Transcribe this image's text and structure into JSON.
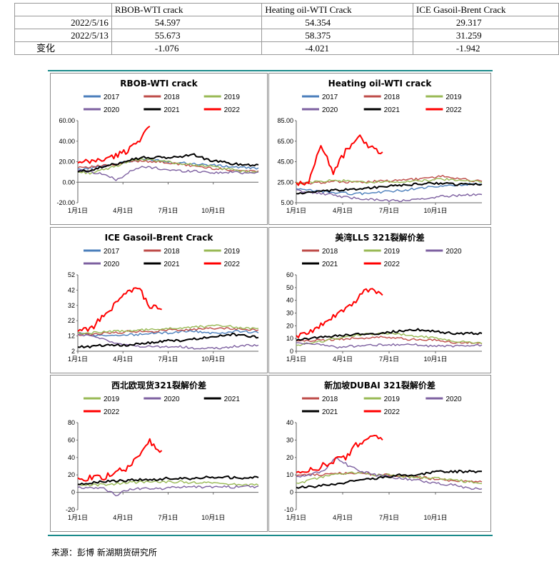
{
  "table": {
    "headers": [
      "",
      "RBOB-WTI crack",
      "Heating oil-WTI Crack",
      "ICE Gasoil-Brent Crack"
    ],
    "rows": [
      {
        "label": "2022/5/16",
        "v1": "54.597",
        "v2": "54.354",
        "v3": "29.317"
      },
      {
        "label": "2022/5/13",
        "v1": "55.673",
        "v2": "58.375",
        "v3": "31.259"
      },
      {
        "label": "变化",
        "v1": "-1.076",
        "v2": "-4.021",
        "v3": "-1.942"
      }
    ]
  },
  "source": "来源：彭博  新湖期货研究所",
  "colors": {
    "2017": "#4a7ebb",
    "2018": "#be4b48",
    "2019": "#98b954",
    "2020": "#7d60a0",
    "2021": "#000000",
    "2022": "#ff0000",
    "rule": "#1a8a8a"
  },
  "chart_data": [
    {
      "id": "rbob",
      "type": "line",
      "title": "RBOB-WTI crack",
      "ylim": [
        -20,
        60
      ],
      "yticks": [
        "60.00",
        "40.00",
        "20.00",
        "0.00",
        "-20.00"
      ],
      "xticks": [
        "1月1日",
        "4月1日",
        "7月1日",
        "10月1日"
      ],
      "series": [
        {
          "name": "2017",
          "values": [
            12,
            14,
            16,
            18,
            20,
            22,
            22,
            20,
            19,
            18,
            17,
            16,
            15,
            14,
            14
          ]
        },
        {
          "name": "2018",
          "values": [
            15,
            15,
            16,
            17,
            20,
            21,
            20,
            19,
            17,
            16,
            14,
            13,
            12,
            11,
            11
          ]
        },
        {
          "name": "2019",
          "values": [
            10,
            9,
            12,
            16,
            21,
            22,
            21,
            20,
            18,
            17,
            16,
            14,
            12,
            10,
            10
          ]
        },
        {
          "name": "2020",
          "values": [
            12,
            10,
            8,
            2,
            10,
            15,
            14,
            12,
            11,
            11,
            10,
            9,
            10,
            9,
            10
          ]
        },
        {
          "name": "2021",
          "values": [
            10,
            12,
            15,
            18,
            22,
            24,
            24,
            24,
            25,
            27,
            22,
            20,
            18,
            17,
            17
          ]
        },
        {
          "name": "2022",
          "values": [
            18,
            20,
            22,
            25,
            30,
            40,
            54.6
          ]
        }
      ]
    },
    {
      "id": "ho",
      "type": "line",
      "title": "Heating oil-WTI crack",
      "ylim": [
        5,
        85
      ],
      "yticks": [
        "85.00",
        "65.00",
        "45.00",
        "25.00",
        "5.00"
      ],
      "xticks": [
        "1月1日",
        "4月1日",
        "7月1日",
        "10月1日"
      ],
      "series": [
        {
          "name": "2017",
          "values": [
            18,
            17,
            16,
            15,
            14,
            14,
            15,
            16,
            17,
            19,
            20,
            21,
            22,
            23,
            23
          ]
        },
        {
          "name": "2018",
          "values": [
            24,
            24,
            25,
            26,
            25,
            25,
            26,
            26,
            27,
            28,
            29,
            31,
            29,
            27,
            26
          ]
        },
        {
          "name": "2019",
          "values": [
            24,
            25,
            26,
            27,
            26,
            25,
            25,
            25,
            26,
            26,
            27,
            28,
            27,
            26,
            25
          ]
        },
        {
          "name": "2020",
          "values": [
            17,
            15,
            14,
            12,
            10,
            9,
            8,
            7,
            7,
            8,
            9,
            11,
            12,
            13,
            13
          ]
        },
        {
          "name": "2021",
          "values": [
            14,
            15,
            16,
            17,
            18,
            19,
            20,
            21,
            22,
            23,
            24,
            24,
            23,
            23,
            23
          ]
        },
        {
          "name": "2022",
          "values": [
            22,
            25,
            62,
            35,
            55,
            70,
            58.4,
            54.4
          ]
        }
      ]
    },
    {
      "id": "gasoil",
      "type": "line",
      "title": "ICE Gasoil-Brent  Crack",
      "ylim": [
        2,
        52
      ],
      "yticks": [
        "52",
        "42",
        "32",
        "22",
        "12",
        "2"
      ],
      "xticks": [
        "1月1日",
        "4月1日",
        "7月1日",
        "10月1日"
      ],
      "series": [
        {
          "name": "2017",
          "values": [
            14,
            13,
            12,
            12,
            13,
            13,
            14,
            14,
            15,
            15,
            14,
            14,
            15,
            15,
            14
          ]
        },
        {
          "name": "2018",
          "values": [
            13,
            13,
            14,
            14,
            15,
            15,
            15,
            16,
            16,
            16,
            17,
            17,
            17,
            16,
            16
          ]
        },
        {
          "name": "2019",
          "values": [
            14,
            14,
            15,
            15,
            15,
            16,
            16,
            17,
            17,
            18,
            18,
            19,
            18,
            17,
            17
          ]
        },
        {
          "name": "2020",
          "values": [
            13,
            12,
            10,
            7,
            6,
            5,
            5,
            5,
            5,
            4,
            4,
            4,
            5,
            6,
            6
          ]
        },
        {
          "name": "2021",
          "values": [
            5,
            5,
            6,
            6,
            6,
            7,
            8,
            9,
            9,
            10,
            11,
            12,
            13,
            12,
            11
          ]
        },
        {
          "name": "2022",
          "values": [
            15,
            16,
            24,
            32,
            40,
            44,
            31.3,
            29.3
          ]
        }
      ]
    },
    {
      "id": "lls",
      "type": "line",
      "title": "美湾LLS 321裂解价差",
      "ylim": [
        0,
        60
      ],
      "yticks": [
        "60",
        "50",
        "40",
        "30",
        "20",
        "10",
        "0"
      ],
      "xticks": [
        "1月1日",
        "4月1日",
        "7月1日",
        "10月1日"
      ],
      "series": [
        {
          "name": "2018",
          "values": [
            8,
            8,
            9,
            9,
            10,
            10,
            11,
            11,
            10,
            9,
            9,
            8,
            7,
            7,
            6
          ]
        },
        {
          "name": "2019",
          "values": [
            5,
            6,
            8,
            10,
            12,
            13,
            14,
            14,
            13,
            12,
            11,
            10,
            8,
            7,
            6
          ]
        },
        {
          "name": "2020",
          "values": [
            7,
            6,
            5,
            3,
            4,
            4,
            5,
            5,
            5,
            5,
            4,
            4,
            4,
            4,
            5
          ]
        },
        {
          "name": "2021",
          "values": [
            9,
            10,
            11,
            12,
            13,
            14,
            14,
            15,
            16,
            17,
            16,
            15,
            14,
            14,
            14
          ]
        },
        {
          "name": "2022",
          "values": [
            12,
            15,
            20,
            28,
            32,
            42,
            50,
            44
          ]
        }
      ]
    },
    {
      "id": "nwe",
      "type": "line",
      "title": "西北欧现货321裂解价差",
      "ylim": [
        -20,
        80
      ],
      "yticks": [
        "80",
        "60",
        "40",
        "20",
        "0",
        "-20"
      ],
      "xticks": [
        "1月1日",
        "4月1日",
        "7月1日",
        "10月1日"
      ],
      "series": [
        {
          "name": "2019",
          "values": [
            8,
            8,
            9,
            10,
            11,
            12,
            12,
            12,
            12,
            11,
            11,
            10,
            9,
            9,
            8
          ]
        },
        {
          "name": "2020",
          "values": [
            6,
            5,
            4,
            -3,
            4,
            4,
            4,
            5,
            6,
            6,
            6,
            6,
            6,
            6,
            7
          ]
        },
        {
          "name": "2021",
          "values": [
            10,
            11,
            12,
            13,
            14,
            15,
            15,
            16,
            16,
            16,
            17,
            17,
            17,
            16,
            17
          ]
        },
        {
          "name": "2022",
          "values": [
            15,
            16,
            17,
            22,
            28,
            38,
            58,
            48
          ]
        }
      ]
    },
    {
      "id": "dubai",
      "type": "line",
      "title": "新加坡DUBAI 321裂解价差",
      "ylim": [
        -10,
        40
      ],
      "yticks": [
        "40",
        "30",
        "20",
        "10",
        "0",
        "-10"
      ],
      "xticks": [
        "1月1日",
        "4月1日",
        "7月1日",
        "10月1日"
      ],
      "series": [
        {
          "name": "2018",
          "values": [
            10,
            10,
            10,
            11,
            11,
            11,
            10,
            10,
            9,
            9,
            8,
            7,
            7,
            6,
            6
          ]
        },
        {
          "name": "2019",
          "values": [
            5,
            7,
            9,
            10,
            11,
            11,
            10,
            10,
            9,
            9,
            8,
            8,
            7,
            6,
            5
          ]
        },
        {
          "name": "2020",
          "values": [
            9,
            10,
            12,
            20,
            15,
            12,
            10,
            9,
            8,
            7,
            6,
            5,
            4,
            2,
            2
          ]
        },
        {
          "name": "2021",
          "values": [
            3,
            3,
            4,
            5,
            6,
            7,
            8,
            9,
            10,
            10,
            11,
            12,
            12,
            12,
            12
          ]
        },
        {
          "name": "2022",
          "values": [
            10,
            12,
            15,
            18,
            20,
            28,
            32,
            30
          ]
        }
      ]
    }
  ]
}
